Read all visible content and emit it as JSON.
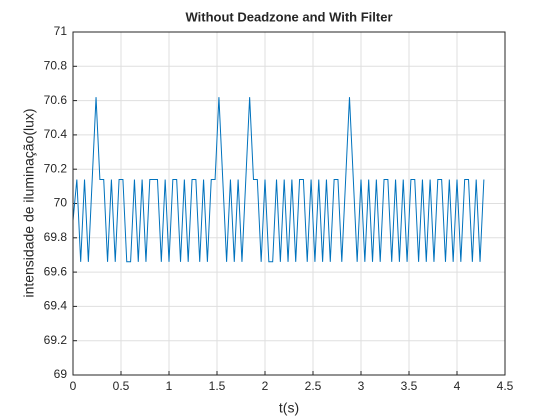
{
  "chart_data": {
    "type": "line",
    "title": "Without Deadzone and With Filter",
    "xlabel": "t(s)",
    "ylabel": "intensidade de iluminação(lux)",
    "x": [
      0,
      0.04,
      0.08,
      0.12,
      0.16,
      0.2,
      0.24,
      0.28,
      0.32,
      0.36,
      0.4,
      0.44,
      0.48,
      0.52,
      0.56,
      0.6,
      0.64,
      0.68,
      0.72,
      0.76,
      0.8,
      0.84,
      0.88,
      0.92,
      0.96,
      1,
      1.04,
      1.08,
      1.12,
      1.16,
      1.2,
      1.24,
      1.28,
      1.32,
      1.36,
      1.4,
      1.44,
      1.48,
      1.52,
      1.56,
      1.6,
      1.64,
      1.68,
      1.72,
      1.76,
      1.8,
      1.84,
      1.88,
      1.92,
      1.96,
      2,
      2.04,
      2.08,
      2.12,
      2.16,
      2.2,
      2.24,
      2.28,
      2.32,
      2.36,
      2.4,
      2.44,
      2.48,
      2.52,
      2.56,
      2.6,
      2.64,
      2.68,
      2.72,
      2.76,
      2.8,
      2.84,
      2.88,
      2.92,
      2.96,
      3,
      3.04,
      3.08,
      3.12,
      3.16,
      3.2,
      3.24,
      3.28,
      3.32,
      3.36,
      3.4,
      3.44,
      3.48,
      3.52,
      3.56,
      3.6,
      3.64,
      3.68,
      3.72,
      3.76,
      3.8,
      3.84,
      3.88,
      3.92,
      3.96,
      4,
      4.04,
      4.08,
      4.12,
      4.16,
      4.2,
      4.24,
      4.28
    ],
    "series": [
      {
        "name": "lux",
        "color": "#0072bd",
        "values": [
          69.9,
          70.14,
          69.66,
          70.14,
          69.66,
          70.14,
          70.62,
          70.14,
          70.14,
          69.66,
          70.14,
          69.66,
          70.14,
          70.14,
          69.66,
          69.66,
          70.14,
          69.66,
          70.14,
          69.66,
          70.14,
          70.14,
          70.14,
          69.66,
          70.14,
          69.66,
          70.14,
          70.14,
          69.66,
          70.14,
          69.66,
          70.14,
          70.14,
          69.66,
          70.14,
          69.66,
          70.14,
          70.14,
          70.62,
          70.14,
          69.66,
          70.14,
          69.66,
          70.14,
          69.66,
          70.14,
          70.62,
          70.14,
          70.14,
          69.66,
          70.14,
          69.66,
          69.66,
          70.14,
          69.66,
          70.14,
          69.66,
          70.14,
          69.66,
          70.14,
          70.14,
          69.66,
          70.14,
          69.66,
          70.14,
          69.66,
          70.14,
          69.66,
          70.14,
          70.14,
          69.66,
          70.14,
          70.62,
          70.14,
          69.66,
          70.14,
          69.66,
          70.14,
          69.66,
          70.14,
          69.66,
          70.14,
          70.14,
          69.66,
          70.14,
          69.66,
          70.14,
          69.66,
          70.14,
          70.14,
          69.66,
          70.14,
          69.66,
          70.14,
          69.66,
          70.14,
          70.14,
          69.66,
          70.14,
          69.66,
          70.14,
          69.66,
          70.14,
          70.14,
          69.66,
          70.14,
          69.66,
          70.14
        ]
      }
    ],
    "xlim": [
      0,
      4.5
    ],
    "xticks": [
      0,
      0.5,
      1,
      1.5,
      2,
      2.5,
      3,
      3.5,
      4,
      4.5
    ],
    "ylim": [
      69,
      71
    ],
    "yticks": [
      69,
      69.2,
      69.4,
      69.6,
      69.8,
      70,
      70.2,
      70.4,
      70.6,
      70.8,
      71
    ],
    "grid": true
  }
}
